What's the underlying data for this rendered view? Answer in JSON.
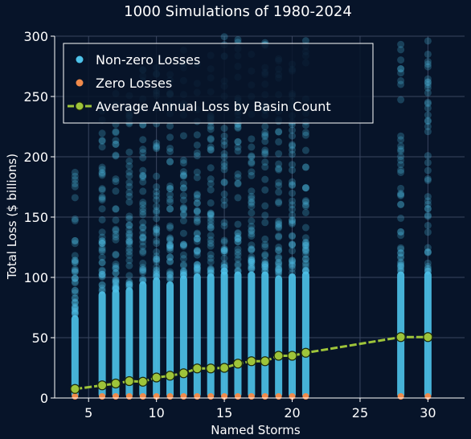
{
  "chart_data": {
    "type": "scatter",
    "title": "1000 Simulations of 1980-2024",
    "xlabel": "Named Storms",
    "ylabel": "Total Loss ($ billions)",
    "xlim": [
      2.5,
      32.7
    ],
    "ylim": [
      0,
      300
    ],
    "xticks": [
      5,
      10,
      15,
      20,
      25,
      30
    ],
    "yticks": [
      0,
      50,
      100,
      150,
      200,
      250,
      300
    ],
    "grid": true,
    "legend_position": "top-left",
    "colors": {
      "background": "#071429",
      "grid": "#3a4660",
      "nonzero": "#4ec3ea",
      "zero": "#f08a4b",
      "average_line": "#9ec43a",
      "average_marker_edge": "#1f2a0a"
    },
    "series": [
      {
        "name": "Non-zero Losses",
        "kind": "scatter",
        "x": [
          4,
          6,
          7,
          8,
          9,
          10,
          11,
          12,
          13,
          14,
          15,
          16,
          17,
          18,
          19,
          20,
          21,
          28,
          30
        ],
        "y_max": [
          190,
          250,
          255,
          260,
          275,
          285,
          275,
          290,
          295,
          295,
          300,
          300,
          300,
          300,
          290,
          295,
          300,
          300,
          300
        ]
      },
      {
        "name": "Zero Losses",
        "kind": "scatter",
        "x": [
          4,
          6,
          7,
          8,
          9,
          10,
          11,
          12,
          13,
          14,
          15,
          16,
          17,
          18,
          19,
          20,
          21,
          28,
          30
        ],
        "y": [
          0,
          0,
          0,
          0,
          0,
          0,
          0,
          0,
          0,
          0,
          0,
          0,
          0,
          0,
          0,
          0,
          0,
          0,
          0
        ]
      },
      {
        "name": "Average Annual Loss by Basin Count",
        "kind": "line",
        "x": [
          4,
          6,
          7,
          8,
          9,
          10,
          11,
          12,
          13,
          14,
          15,
          16,
          17,
          18,
          19,
          20,
          21,
          28,
          30
        ],
        "y": [
          7.5,
          10.5,
          12,
          14,
          13.5,
          17,
          18.5,
          20.5,
          24.5,
          24.5,
          25,
          28.5,
          30.5,
          30.5,
          35,
          35,
          37.5,
          50.5,
          50.5
        ]
      }
    ]
  }
}
